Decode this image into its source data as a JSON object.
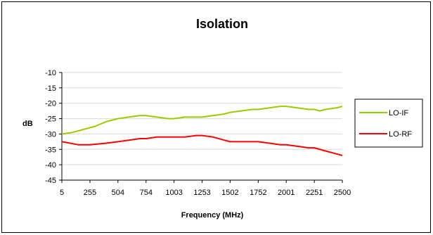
{
  "chart_data": {
    "type": "line",
    "title": "Isolation",
    "xlabel": "Frequency (MHz)",
    "ylabel": "dB",
    "x_tick_labels": [
      "5",
      "255",
      "504",
      "754",
      "1003",
      "1253",
      "1502",
      "1752",
      "2001",
      "2251",
      "2500"
    ],
    "y_tick_labels": [
      "-10",
      "-15",
      "-20",
      "-25",
      "-30",
      "-35",
      "-40",
      "-45"
    ],
    "ylim": [
      -45,
      -10
    ],
    "xlim": [
      5,
      2500
    ],
    "grid": true,
    "legend_position": "right",
    "series": [
      {
        "name": "LO-IF",
        "color": "#99cc00",
        "points": [
          [
            5,
            -30
          ],
          [
            100,
            -29.5
          ],
          [
            200,
            -28.5
          ],
          [
            300,
            -27.5
          ],
          [
            400,
            -26
          ],
          [
            504,
            -25
          ],
          [
            600,
            -24.5
          ],
          [
            700,
            -24
          ],
          [
            754,
            -24
          ],
          [
            850,
            -24.5
          ],
          [
            950,
            -25
          ],
          [
            1003,
            -25
          ],
          [
            1100,
            -24.5
          ],
          [
            1253,
            -24.5
          ],
          [
            1350,
            -24
          ],
          [
            1450,
            -23.5
          ],
          [
            1502,
            -23
          ],
          [
            1600,
            -22.5
          ],
          [
            1700,
            -22
          ],
          [
            1752,
            -22
          ],
          [
            1850,
            -21.5
          ],
          [
            1950,
            -21
          ],
          [
            2001,
            -21
          ],
          [
            2100,
            -21.5
          ],
          [
            2200,
            -22
          ],
          [
            2251,
            -22
          ],
          [
            2300,
            -22.5
          ],
          [
            2350,
            -22
          ],
          [
            2450,
            -21.5
          ],
          [
            2500,
            -21
          ]
        ]
      },
      {
        "name": "LO-RF",
        "color": "#ff0000",
        "points": [
          [
            5,
            -32.5
          ],
          [
            150,
            -33.5
          ],
          [
            255,
            -33.5
          ],
          [
            400,
            -33
          ],
          [
            504,
            -32.5
          ],
          [
            600,
            -32
          ],
          [
            700,
            -31.5
          ],
          [
            754,
            -31.5
          ],
          [
            850,
            -31
          ],
          [
            1003,
            -31
          ],
          [
            1100,
            -31
          ],
          [
            1200,
            -30.5
          ],
          [
            1253,
            -30.5
          ],
          [
            1350,
            -31
          ],
          [
            1450,
            -32
          ],
          [
            1502,
            -32.5
          ],
          [
            1752,
            -32.5
          ],
          [
            1850,
            -33
          ],
          [
            1950,
            -33.5
          ],
          [
            2001,
            -33.5
          ],
          [
            2100,
            -34
          ],
          [
            2200,
            -34.5
          ],
          [
            2251,
            -34.5
          ],
          [
            2350,
            -35.5
          ],
          [
            2450,
            -36.5
          ],
          [
            2500,
            -37
          ]
        ]
      }
    ]
  }
}
